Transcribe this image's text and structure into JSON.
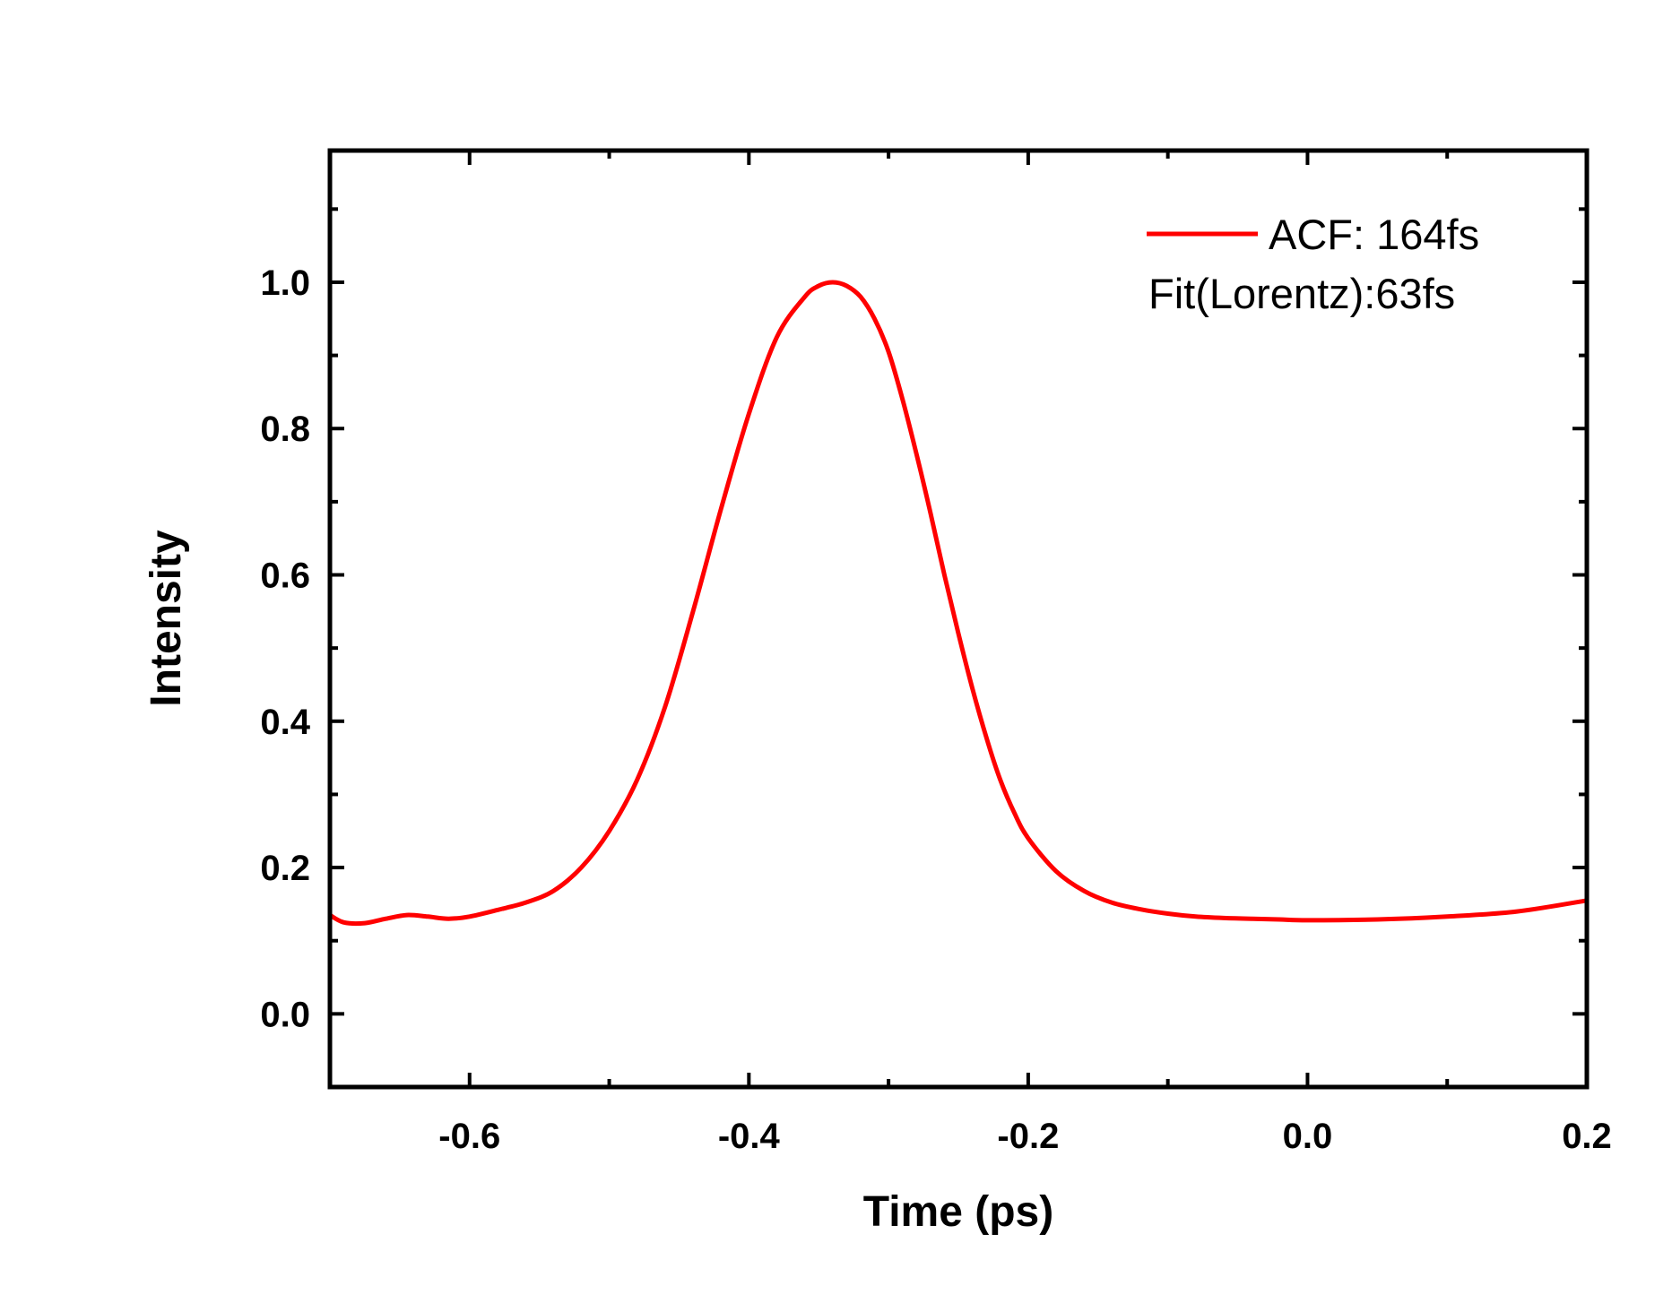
{
  "chart_data": {
    "type": "line",
    "xlabel": "Time (ps)",
    "ylabel": "Intensity",
    "xlim": [
      -0.7,
      0.2
    ],
    "ylim": [
      -0.1,
      1.18
    ],
    "xticks": [
      -0.6,
      -0.4,
      -0.2,
      0.0,
      0.2
    ],
    "xtick_labels": [
      "-0.6",
      "-0.4",
      "-0.2",
      "0.0",
      "0.2"
    ],
    "yticks": [
      0.0,
      0.2,
      0.4,
      0.6,
      0.8,
      1.0
    ],
    "ytick_labels": [
      "0.0",
      "0.2",
      "0.4",
      "0.6",
      "0.8",
      "1.0"
    ],
    "grid": false,
    "legend_position": "top-right",
    "legend": {
      "entry": "ACF: 164fs",
      "note": "Fit(Lorentz):63fs"
    },
    "series": [
      {
        "name": "ACF: 164fs",
        "color": "#ff0000",
        "x": [
          -0.7,
          -0.69,
          -0.675,
          -0.66,
          -0.645,
          -0.63,
          -0.615,
          -0.6,
          -0.58,
          -0.56,
          -0.54,
          -0.52,
          -0.5,
          -0.48,
          -0.46,
          -0.44,
          -0.42,
          -0.4,
          -0.38,
          -0.36,
          -0.35,
          -0.34,
          -0.33,
          -0.32,
          -0.31,
          -0.3,
          -0.29,
          -0.28,
          -0.27,
          -0.26,
          -0.25,
          -0.24,
          -0.23,
          -0.22,
          -0.21,
          -0.2,
          -0.18,
          -0.16,
          -0.14,
          -0.12,
          -0.1,
          -0.08,
          -0.06,
          -0.04,
          -0.02,
          0.0,
          0.05,
          0.1,
          0.15,
          0.2
        ],
        "y": [
          0.135,
          0.125,
          0.124,
          0.13,
          0.135,
          0.133,
          0.13,
          0.133,
          0.142,
          0.152,
          0.168,
          0.2,
          0.25,
          0.32,
          0.42,
          0.55,
          0.69,
          0.82,
          0.925,
          0.98,
          0.995,
          1.0,
          0.995,
          0.98,
          0.95,
          0.905,
          0.84,
          0.765,
          0.685,
          0.6,
          0.52,
          0.445,
          0.378,
          0.32,
          0.275,
          0.24,
          0.195,
          0.168,
          0.152,
          0.143,
          0.137,
          0.133,
          0.131,
          0.13,
          0.129,
          0.128,
          0.129,
          0.133,
          0.14,
          0.155
        ]
      }
    ]
  }
}
